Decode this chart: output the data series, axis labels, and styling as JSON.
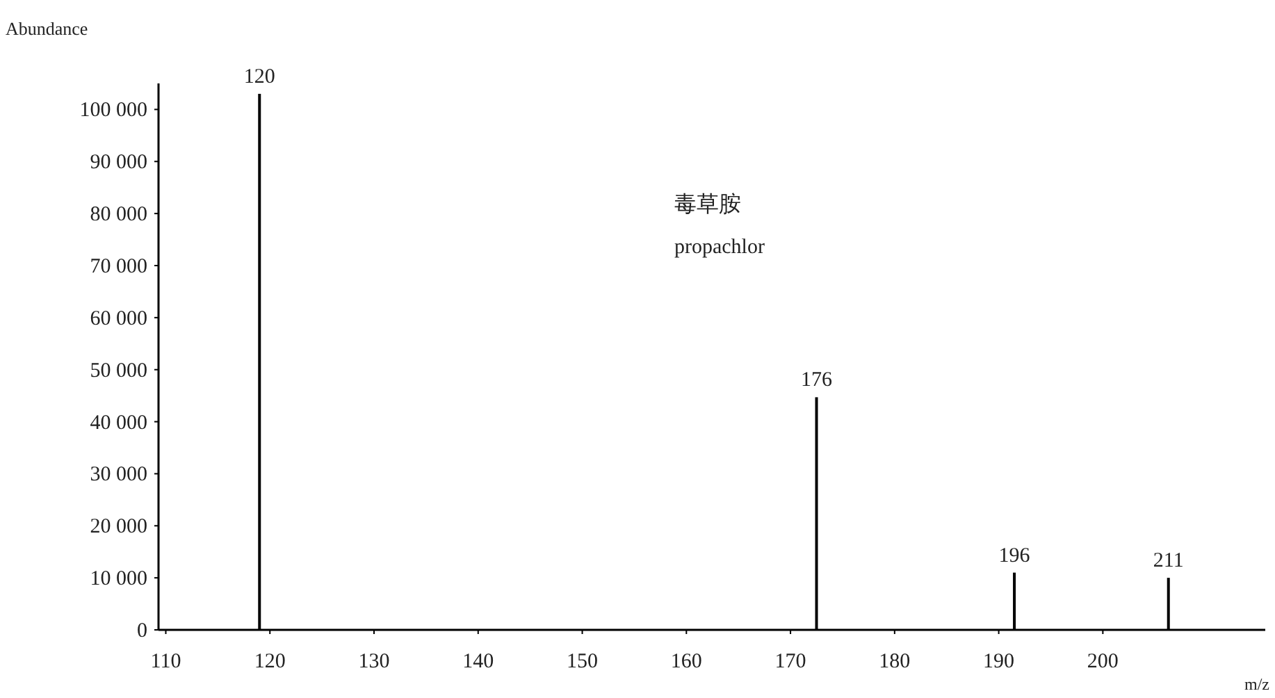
{
  "chart_data": {
    "type": "bar",
    "xlabel": "m/z",
    "ylabel": "Abundance",
    "x": [
      119,
      172.5,
      191.5,
      206.3
    ],
    "values": [
      103000,
      44700,
      11000,
      10000
    ],
    "color": "#000000",
    "xlim": [
      109.3,
      215.6
    ],
    "ylim": [
      0,
      105000
    ],
    "xticks": [
      110,
      120,
      130,
      140,
      150,
      160,
      170,
      180,
      190,
      200
    ],
    "yticks": [
      0,
      {
        "value": 10000,
        "label": "10 000"
      },
      {
        "value": 20000,
        "label": "20 000"
      },
      {
        "value": 30000,
        "label": "30 000"
      },
      {
        "value": 40000,
        "label": "40 000"
      },
      {
        "value": 50000,
        "label": "50 000"
      },
      {
        "value": 60000,
        "label": "60 000"
      },
      {
        "value": 70000,
        "label": "70 000"
      },
      {
        "value": 80000,
        "label": "80 000"
      },
      {
        "value": 90000,
        "label": "90 000"
      },
      {
        "value": 100000,
        "label": "100 000"
      }
    ],
    "annotations": [
      {
        "text": "120",
        "x": 119,
        "y": 103000
      },
      {
        "text": "176",
        "x": 172.5,
        "y": 44700
      },
      {
        "text": "196",
        "x": 191.5,
        "y": 11000
      },
      {
        "text": "211",
        "x": 206.3,
        "y": 10000
      },
      "毒草胺",
      "propachlor"
    ],
    "grid": false
  }
}
